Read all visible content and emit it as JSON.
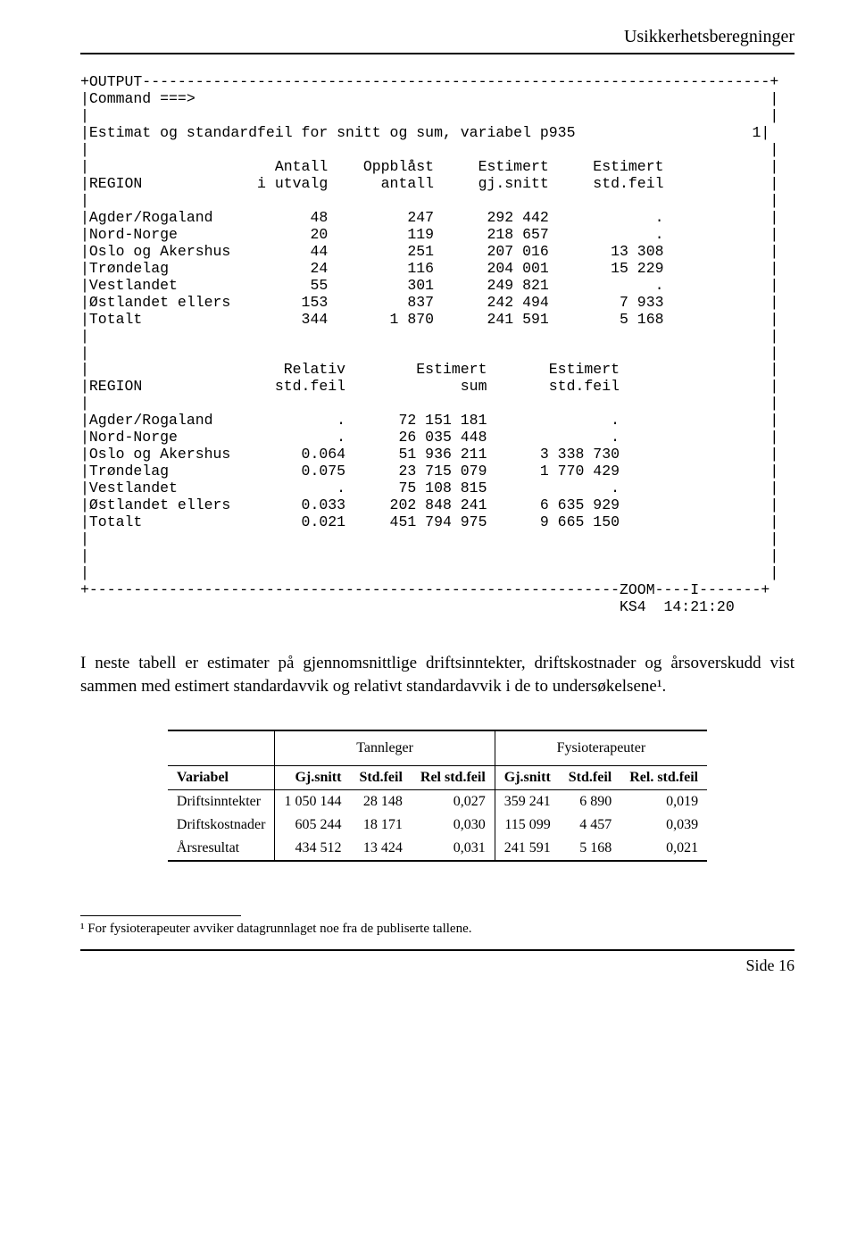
{
  "header": {
    "title": "Usikkerhetsberegninger"
  },
  "terminal": {
    "block_label": "+OUTPUT",
    "command_prompt": "Command ===>",
    "title": "Estimat og standardfeil for snitt og sum, variabel p935",
    "page_indicator": "1",
    "table1": {
      "headers": {
        "region": "REGION",
        "c1a": "Antall",
        "c1b": "i utvalg",
        "c2a": "Oppblåst",
        "c2b": "antall",
        "c3a": "Estimert",
        "c3b": "gj.snitt",
        "c4a": "Estimert",
        "c4b": "std.feil"
      },
      "rows": [
        {
          "region": "Agder/Rogaland",
          "antall": "48",
          "oppblast": "247",
          "gjsnitt": "292 442",
          "stdfeil": "."
        },
        {
          "region": "Nord-Norge",
          "antall": "20",
          "oppblast": "119",
          "gjsnitt": "218 657",
          "stdfeil": "."
        },
        {
          "region": "Oslo og Akershus",
          "antall": "44",
          "oppblast": "251",
          "gjsnitt": "207 016",
          "stdfeil": "13 308"
        },
        {
          "region": "Trøndelag",
          "antall": "24",
          "oppblast": "116",
          "gjsnitt": "204 001",
          "stdfeil": "15 229"
        },
        {
          "region": "Vestlandet",
          "antall": "55",
          "oppblast": "301",
          "gjsnitt": "249 821",
          "stdfeil": "."
        },
        {
          "region": "Østlandet ellers",
          "antall": "153",
          "oppblast": "837",
          "gjsnitt": "242 494",
          "stdfeil": "7 933"
        },
        {
          "region": "Totalt",
          "antall": "344",
          "oppblast": "1 870",
          "gjsnitt": "241 591",
          "stdfeil": "5 168"
        }
      ]
    },
    "table2": {
      "headers": {
        "region": "REGION",
        "c1a": "Relativ",
        "c1b": "std.feil",
        "c2a": "Estimert",
        "c2b": "sum",
        "c3a": "Estimert",
        "c3b": "std.feil"
      },
      "rows": [
        {
          "region": "Agder/Rogaland",
          "rel": ".",
          "sum": "72 151 181",
          "stdfeil": "."
        },
        {
          "region": "Nord-Norge",
          "rel": ".",
          "sum": "26 035 448",
          "stdfeil": "."
        },
        {
          "region": "Oslo og Akershus",
          "rel": "0.064",
          "sum": "51 936 211",
          "stdfeil": "3 338 730"
        },
        {
          "region": "Trøndelag",
          "rel": "0.075",
          "sum": "23 715 079",
          "stdfeil": "1 770 429"
        },
        {
          "region": "Vestlandet",
          "rel": ".",
          "sum": "75 108 815",
          "stdfeil": "."
        },
        {
          "region": "Østlandet ellers",
          "rel": "0.033",
          "sum": "202 848 241",
          "stdfeil": "6 635 929"
        },
        {
          "region": "Totalt",
          "rel": "0.021",
          "sum": "451 794 975",
          "stdfeil": "9 665 150"
        }
      ]
    },
    "footer_zoom": "ZOOM----I",
    "footer_status": "KS4  14:21:20"
  },
  "body_text": "I neste tabell er estimater på gjennomsnittlige driftsinntekter, driftskostnader og årsoverskudd vist sammen med estimert standardavvik og relativt standardavvik i de to undersøkelsene¹.",
  "result_table": {
    "groups": {
      "g1": "Tannleger",
      "g2": "Fysioterapeuter"
    },
    "headers": {
      "var": "Variabel",
      "g1_c1": "Gj.snitt",
      "g1_c2": "Std.feil",
      "g1_c3": "Rel std.feil",
      "g2_c1": "Gj.snitt",
      "g2_c2": "Std.feil",
      "g2_c3": "Rel. std.feil"
    },
    "rows": [
      {
        "var": "Driftsinntekter",
        "a1": "1 050 144",
        "a2": "28 148",
        "a3": "0,027",
        "b1": "359 241",
        "b2": "6 890",
        "b3": "0,019"
      },
      {
        "var": "Driftskostnader",
        "a1": "605 244",
        "a2": "18 171",
        "a3": "0,030",
        "b1": "115 099",
        "b2": "4 457",
        "b3": "0,039"
      },
      {
        "var": "Årsresultat",
        "a1": "434 512",
        "a2": "13 424",
        "a3": "0,031",
        "b1": "241 591",
        "b2": "5 168",
        "b3": "0,021"
      }
    ]
  },
  "footnote": "¹ For fysioterapeuter avviker datagrunnlaget noe fra de publiserte tallene.",
  "page_number": "Side 16"
}
